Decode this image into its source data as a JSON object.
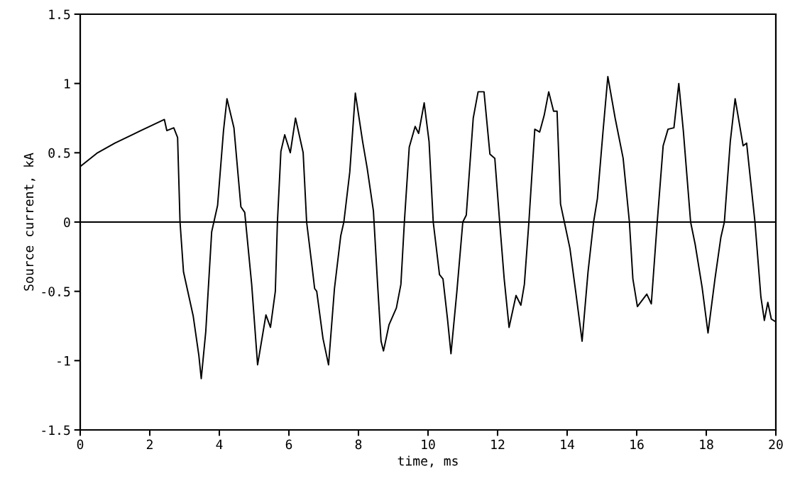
{
  "chart_data": {
    "type": "line",
    "xlabel": "time, ms",
    "ylabel": "Source current, kA",
    "xlim": [
      0,
      20
    ],
    "xticks": [
      0,
      2,
      4,
      6,
      8,
      10,
      12,
      14,
      16,
      18,
      20
    ],
    "ylim": [
      -1.5,
      1.5
    ],
    "yticks": [
      -1.5,
      -1,
      -0.5,
      0,
      0.5,
      1,
      1.5
    ],
    "grid": false,
    "legend": false,
    "marker": "none",
    "line_style": "solid",
    "ref_lines": [
      {
        "axis": "y",
        "value": 0,
        "color": "#000000"
      }
    ],
    "series": [
      {
        "color": "#000000",
        "x": [
          0,
          0.5,
          1,
          1.5,
          1.74,
          2,
          2.42,
          2.49,
          2.69,
          2.8,
          2.87,
          2.97,
          3.25,
          3.41,
          3.48,
          3.61,
          3.78,
          3.95,
          4.12,
          4.22,
          4.42,
          4.62,
          4.73,
          4.93,
          5.1,
          5.34,
          5.47,
          5.61,
          5.67,
          5.77,
          5.88,
          6.04,
          6.19,
          6.41,
          6.51,
          6.67,
          6.74,
          6.8,
          6.98,
          7.14,
          7.31,
          7.49,
          7.58,
          7.75,
          7.91,
          8.12,
          8.25,
          8.43,
          8.55,
          8.65,
          8.72,
          8.88,
          9.09,
          9.22,
          9.32,
          9.46,
          9.63,
          9.73,
          9.89,
          10.03,
          10.15,
          10.33,
          10.43,
          10.56,
          10.66,
          10.83,
          11.0,
          11.1,
          11.3,
          11.44,
          11.61,
          11.78,
          11.92,
          12.06,
          12.19,
          12.33,
          12.53,
          12.67,
          12.77,
          12.9,
          13.07,
          13.21,
          13.34,
          13.47,
          13.61,
          13.71,
          13.81,
          13.92,
          14.08,
          14.25,
          14.43,
          14.6,
          14.76,
          14.87,
          15.03,
          15.17,
          15.38,
          15.61,
          15.79,
          15.89,
          16.02,
          16.29,
          16.42,
          16.59,
          16.76,
          16.9,
          17.07,
          17.21,
          17.34,
          17.55,
          17.68,
          17.88,
          18.05,
          18.25,
          18.42,
          18.52,
          18.69,
          18.83,
          19.06,
          19.16,
          19.4,
          19.57,
          19.67,
          19.77,
          19.87,
          20
        ],
        "values": [
          0.4,
          0.5,
          0.57,
          0.63,
          0.66,
          0.69,
          0.74,
          0.66,
          0.68,
          0.61,
          0,
          -0.36,
          -0.68,
          -0.96,
          -1.13,
          -0.79,
          -0.07,
          0.12,
          0.66,
          0.89,
          0.68,
          0.11,
          0.07,
          -0.45,
          -1.03,
          -0.67,
          -0.76,
          -0.5,
          0,
          0.51,
          0.63,
          0.5,
          0.75,
          0.5,
          0,
          -0.33,
          -0.48,
          -0.5,
          -0.84,
          -1.03,
          -0.48,
          -0.1,
          0,
          0.36,
          0.93,
          0.58,
          0.39,
          0.08,
          -0.45,
          -0.86,
          -0.93,
          -0.74,
          -0.62,
          -0.45,
          0,
          0.54,
          0.69,
          0.64,
          0.86,
          0.58,
          0,
          -0.38,
          -0.41,
          -0.7,
          -0.95,
          -0.5,
          0,
          0.05,
          0.75,
          0.94,
          0.94,
          0.49,
          0.46,
          0,
          -0.41,
          -0.76,
          -0.53,
          -0.6,
          -0.45,
          0,
          0.67,
          0.65,
          0.77,
          0.94,
          0.8,
          0.8,
          0.13,
          0,
          -0.19,
          -0.51,
          -0.86,
          -0.36,
          0,
          0.17,
          0.65,
          1.05,
          0.75,
          0.46,
          0,
          -0.41,
          -0.61,
          -0.52,
          -0.59,
          0,
          0.55,
          0.67,
          0.68,
          1.0,
          0.66,
          0,
          -0.16,
          -0.47,
          -0.8,
          -0.41,
          -0.11,
          0,
          0.58,
          0.89,
          0.55,
          0.57,
          0,
          -0.54,
          -0.71,
          -0.58,
          -0.7,
          -0.72
        ]
      }
    ]
  }
}
